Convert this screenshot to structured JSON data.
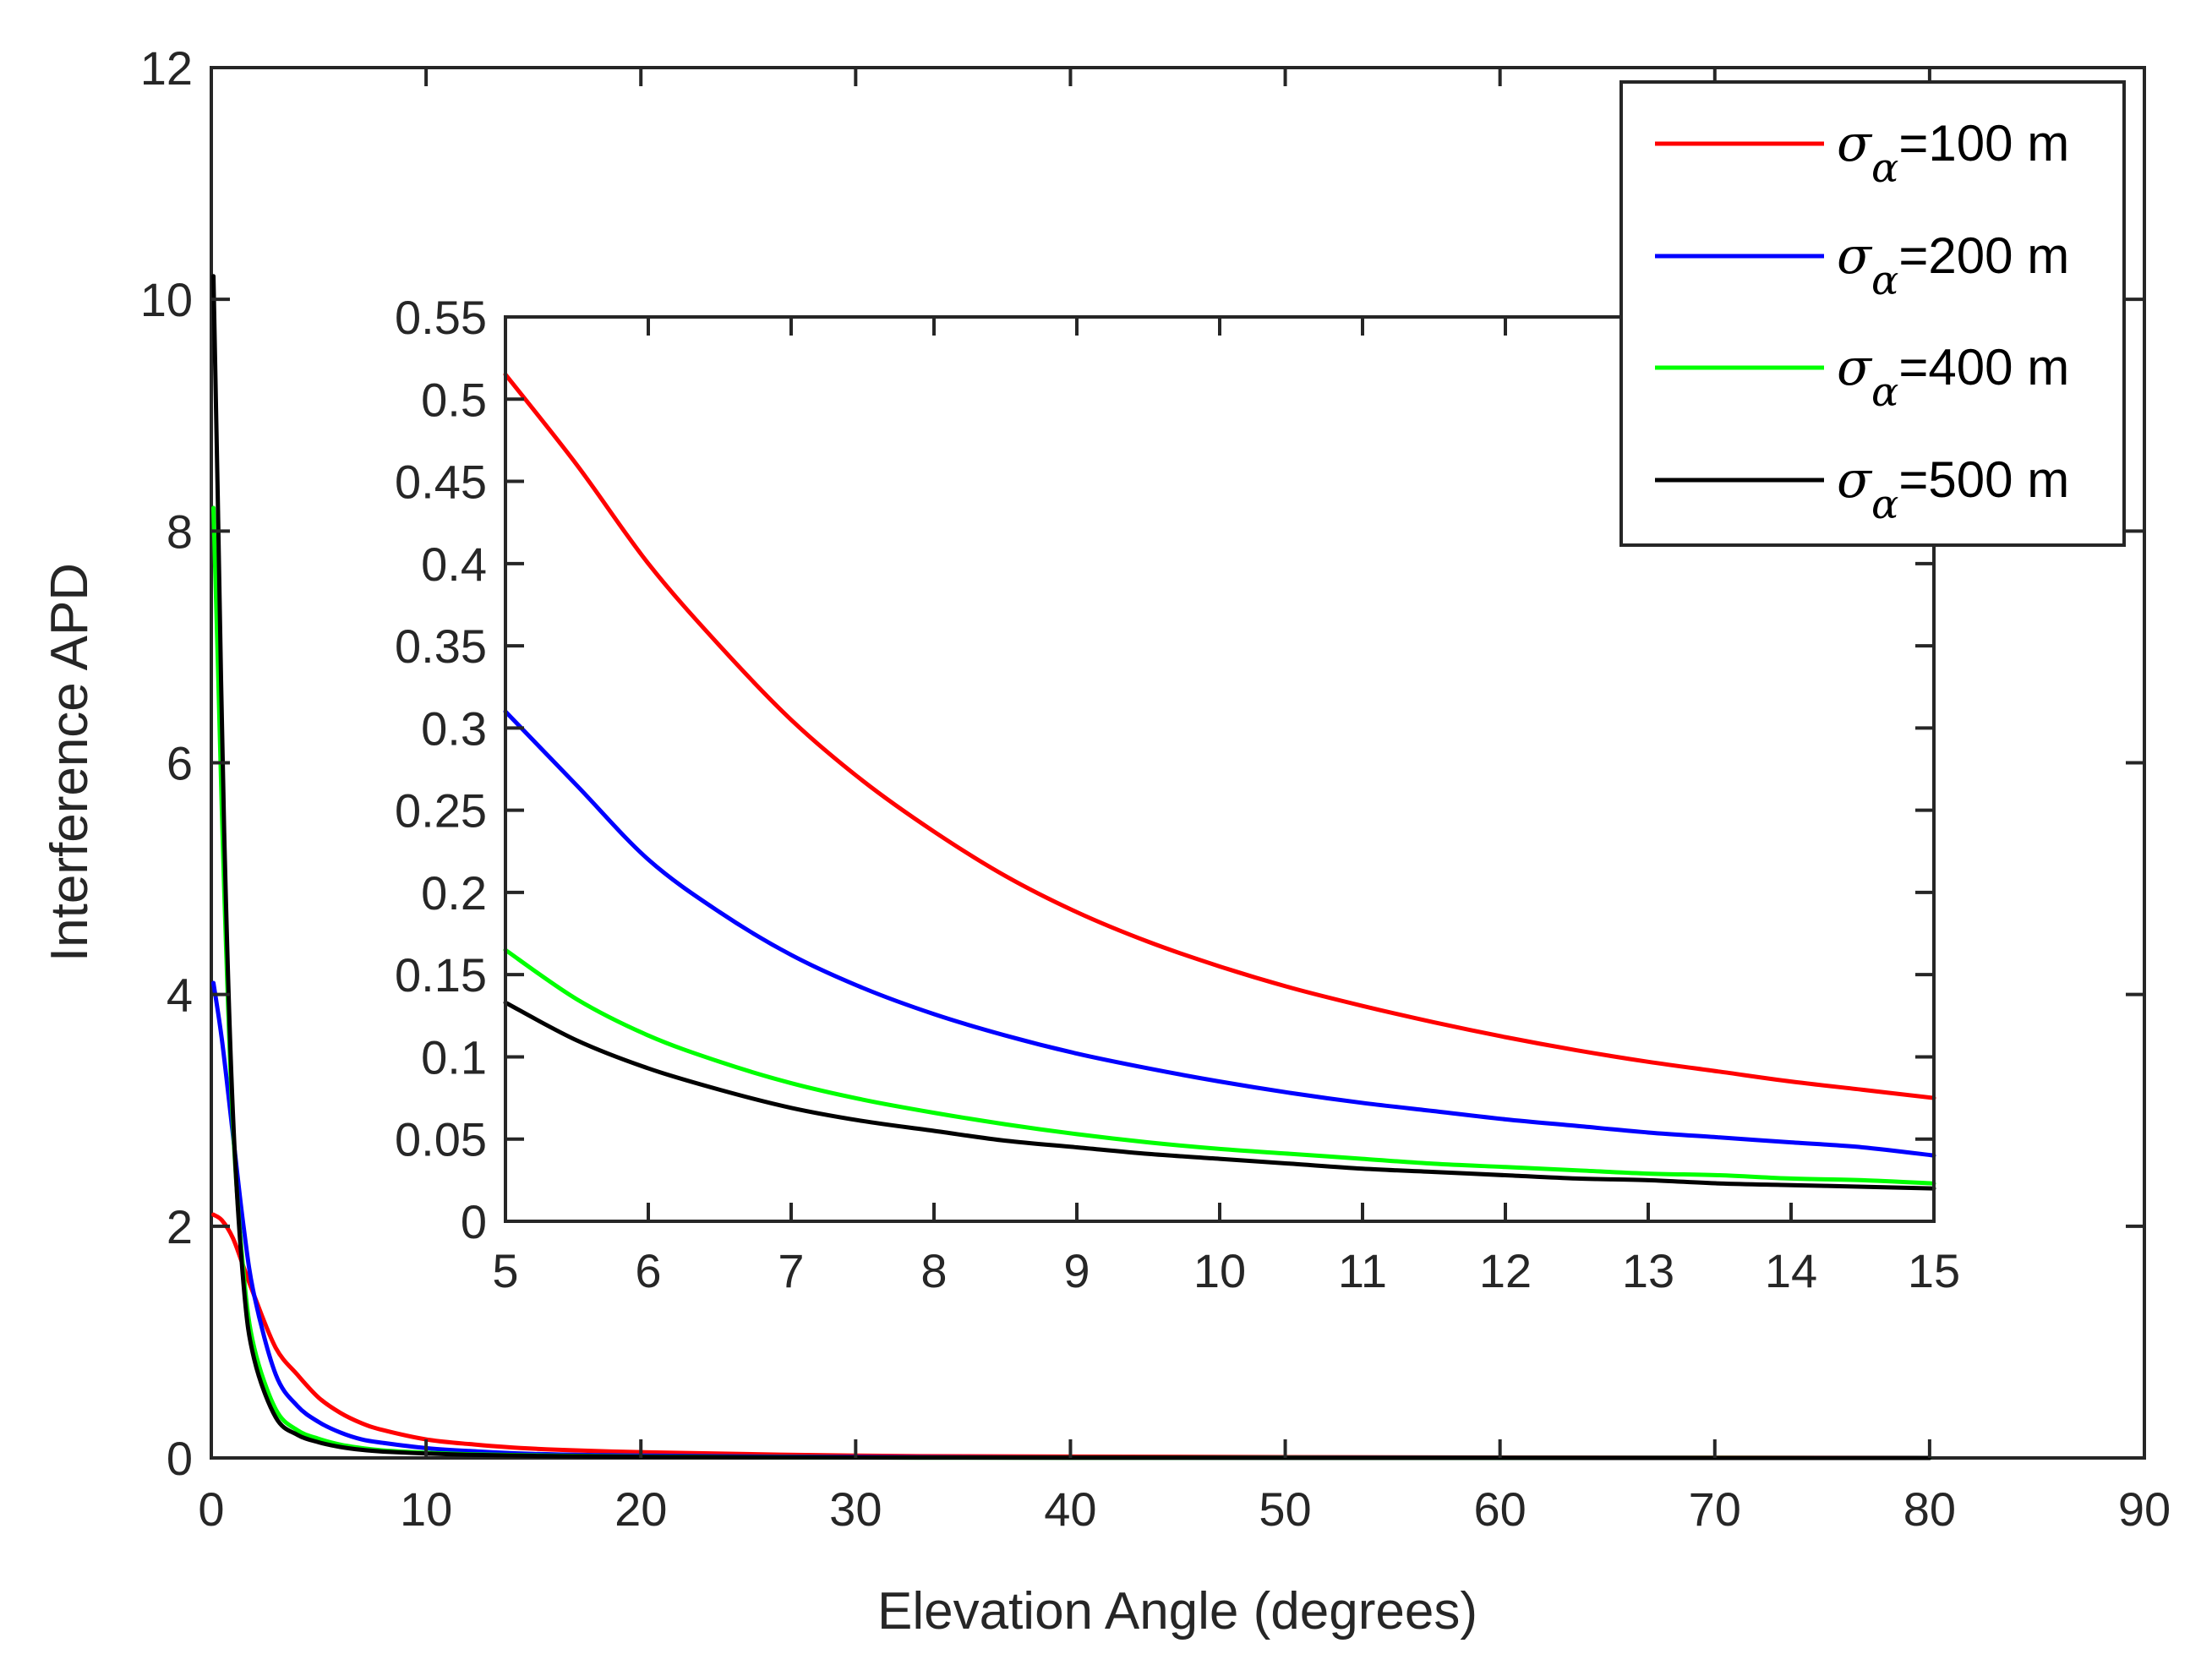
{
  "chart_data": [
    {
      "id": "main",
      "type": "line",
      "title": "",
      "xlabel": "Elevation Angle (degrees)",
      "ylabel": "Interference APD",
      "xlim": [
        0,
        90
      ],
      "ylim": [
        0,
        12
      ],
      "xticks": [
        0,
        10,
        20,
        30,
        40,
        50,
        60,
        70,
        80,
        90
      ],
      "yticks": [
        0,
        2,
        4,
        6,
        8,
        10,
        12
      ],
      "xtick_labels": [
        "0",
        "10",
        "20",
        "30",
        "40",
        "50",
        "60",
        "70",
        "80",
        "90"
      ],
      "ytick_labels": [
        "0",
        "2",
        "4",
        "6",
        "8",
        "10",
        "12"
      ],
      "grid": false,
      "legend_position": "top-right",
      "series": [
        {
          "name": "σα=100 m",
          "sigma": 100,
          "color": "#ff0000",
          "x": [
            0.1,
            0.5,
            1,
            1.5,
            2,
            3,
            4,
            5,
            6,
            7,
            8,
            10,
            12,
            15,
            20,
            30,
            40,
            60,
            80
          ],
          "y": [
            2.1,
            2.05,
            1.9,
            1.65,
            1.4,
            0.95,
            0.72,
            0.52,
            0.39,
            0.3,
            0.24,
            0.16,
            0.12,
            0.08,
            0.05,
            0.02,
            0.012,
            0.004,
            0.0
          ]
        },
        {
          "name": "σα=200 m",
          "sigma": 200,
          "color": "#0000ff",
          "x": [
            0.1,
            0.5,
            1,
            1.5,
            2,
            3,
            4,
            5,
            6,
            7,
            8,
            10,
            12,
            15,
            20,
            30,
            40,
            60,
            80
          ],
          "y": [
            4.1,
            3.6,
            2.8,
            2.0,
            1.4,
            0.72,
            0.45,
            0.31,
            0.22,
            0.16,
            0.13,
            0.085,
            0.06,
            0.035,
            0.02,
            0.008,
            0.004,
            0.001,
            0.0
          ]
        },
        {
          "name": "σα=400 m",
          "sigma": 400,
          "color": "#00ff00",
          "x": [
            0.1,
            0.3,
            0.6,
            1,
            1.5,
            2,
            3,
            4,
            5,
            6,
            7,
            8,
            10,
            12,
            15,
            20,
            30,
            40,
            60,
            80
          ],
          "y": [
            8.2,
            6.9,
            4.9,
            2.9,
            1.6,
            0.95,
            0.42,
            0.24,
            0.165,
            0.115,
            0.085,
            0.065,
            0.045,
            0.032,
            0.022,
            0.012,
            0.004,
            0.002,
            0.001,
            0.0
          ]
        },
        {
          "name": "σα=500 m",
          "sigma": 500,
          "color": "#000000",
          "x": [
            0.1,
            0.3,
            0.6,
            1,
            1.5,
            2,
            3,
            4,
            5,
            6,
            7,
            8,
            10,
            12,
            15,
            20,
            30,
            40,
            60,
            80
          ],
          "y": [
            10.2,
            8.3,
            5.4,
            3.0,
            1.5,
            0.85,
            0.35,
            0.2,
            0.135,
            0.095,
            0.07,
            0.055,
            0.038,
            0.027,
            0.018,
            0.01,
            0.004,
            0.002,
            0.0005,
            0.0
          ]
        }
      ]
    },
    {
      "id": "inset",
      "type": "line",
      "title": "",
      "xlabel": "",
      "ylabel": "",
      "xlim": [
        5,
        15
      ],
      "ylim": [
        0,
        0.55
      ],
      "xticks": [
        5,
        6,
        7,
        8,
        9,
        10,
        11,
        12,
        13,
        14,
        15
      ],
      "yticks": [
        0,
        0.05,
        0.1,
        0.15,
        0.2,
        0.25,
        0.3,
        0.35,
        0.4,
        0.45,
        0.5,
        0.55
      ],
      "xtick_labels": [
        "5",
        "6",
        "7",
        "8",
        "9",
        "10",
        "11",
        "12",
        "13",
        "14",
        "15"
      ],
      "ytick_labels": [
        "0",
        "0.05",
        "0.1",
        "0.15",
        "0.2",
        "0.25",
        "0.3",
        "0.35",
        "0.4",
        "0.45",
        "0.5",
        "0.55"
      ],
      "grid": false,
      "series": [
        {
          "name": "σα=100 m",
          "color": "#ff0000",
          "x": [
            5,
            5.5,
            6,
            6.5,
            7,
            7.5,
            8,
            8.5,
            9,
            9.5,
            10,
            10.5,
            11,
            11.5,
            12,
            12.5,
            13,
            13.5,
            14,
            14.5,
            15
          ],
          "y": [
            0.515,
            0.46,
            0.4,
            0.35,
            0.305,
            0.268,
            0.237,
            0.21,
            0.188,
            0.17,
            0.155,
            0.142,
            0.131,
            0.121,
            0.112,
            0.104,
            0.097,
            0.091,
            0.085,
            0.08,
            0.075
          ]
        },
        {
          "name": "σα=200 m",
          "color": "#0000ff",
          "x": [
            5,
            5.5,
            6,
            6.5,
            7,
            7.5,
            8,
            8.5,
            9,
            9.5,
            10,
            10.5,
            11,
            11.5,
            12,
            12.5,
            13,
            13.5,
            14,
            14.5,
            15
          ],
          "y": [
            0.31,
            0.265,
            0.22,
            0.188,
            0.162,
            0.142,
            0.126,
            0.113,
            0.102,
            0.093,
            0.085,
            0.078,
            0.072,
            0.067,
            0.062,
            0.058,
            0.054,
            0.051,
            0.048,
            0.045,
            0.04
          ]
        },
        {
          "name": "σα=400 m",
          "color": "#00ff00",
          "x": [
            5,
            5.5,
            6,
            6.5,
            7,
            7.5,
            8,
            8.5,
            9,
            9.5,
            10,
            10.5,
            11,
            11.5,
            12,
            12.5,
            13,
            13.5,
            14,
            14.5,
            15
          ],
          "y": [
            0.165,
            0.135,
            0.113,
            0.097,
            0.084,
            0.074,
            0.066,
            0.059,
            0.053,
            0.048,
            0.044,
            0.041,
            0.038,
            0.035,
            0.033,
            0.031,
            0.029,
            0.028,
            0.026,
            0.025,
            0.023
          ]
        },
        {
          "name": "σα=500 m",
          "color": "#000000",
          "x": [
            5,
            5.5,
            6,
            6.5,
            7,
            7.5,
            8,
            8.5,
            9,
            9.5,
            10,
            10.5,
            11,
            11.5,
            12,
            12.5,
            13,
            13.5,
            14,
            14.5,
            15
          ],
          "y": [
            0.133,
            0.11,
            0.093,
            0.08,
            0.069,
            0.061,
            0.055,
            0.049,
            0.045,
            0.041,
            0.038,
            0.035,
            0.032,
            0.03,
            0.028,
            0.026,
            0.025,
            0.023,
            0.022,
            0.021,
            0.02
          ]
        }
      ]
    }
  ],
  "legend": [
    {
      "symbol": "σ",
      "subscript": "α",
      "text": "=100 m",
      "color": "#ff0000"
    },
    {
      "symbol": "σ",
      "subscript": "α",
      "text": "=200 m",
      "color": "#0000ff"
    },
    {
      "symbol": "σ",
      "subscript": "α",
      "text": "=400 m",
      "color": "#00ff00"
    },
    {
      "symbol": "σ",
      "subscript": "α",
      "text": "=500 m",
      "color": "#000000"
    }
  ]
}
